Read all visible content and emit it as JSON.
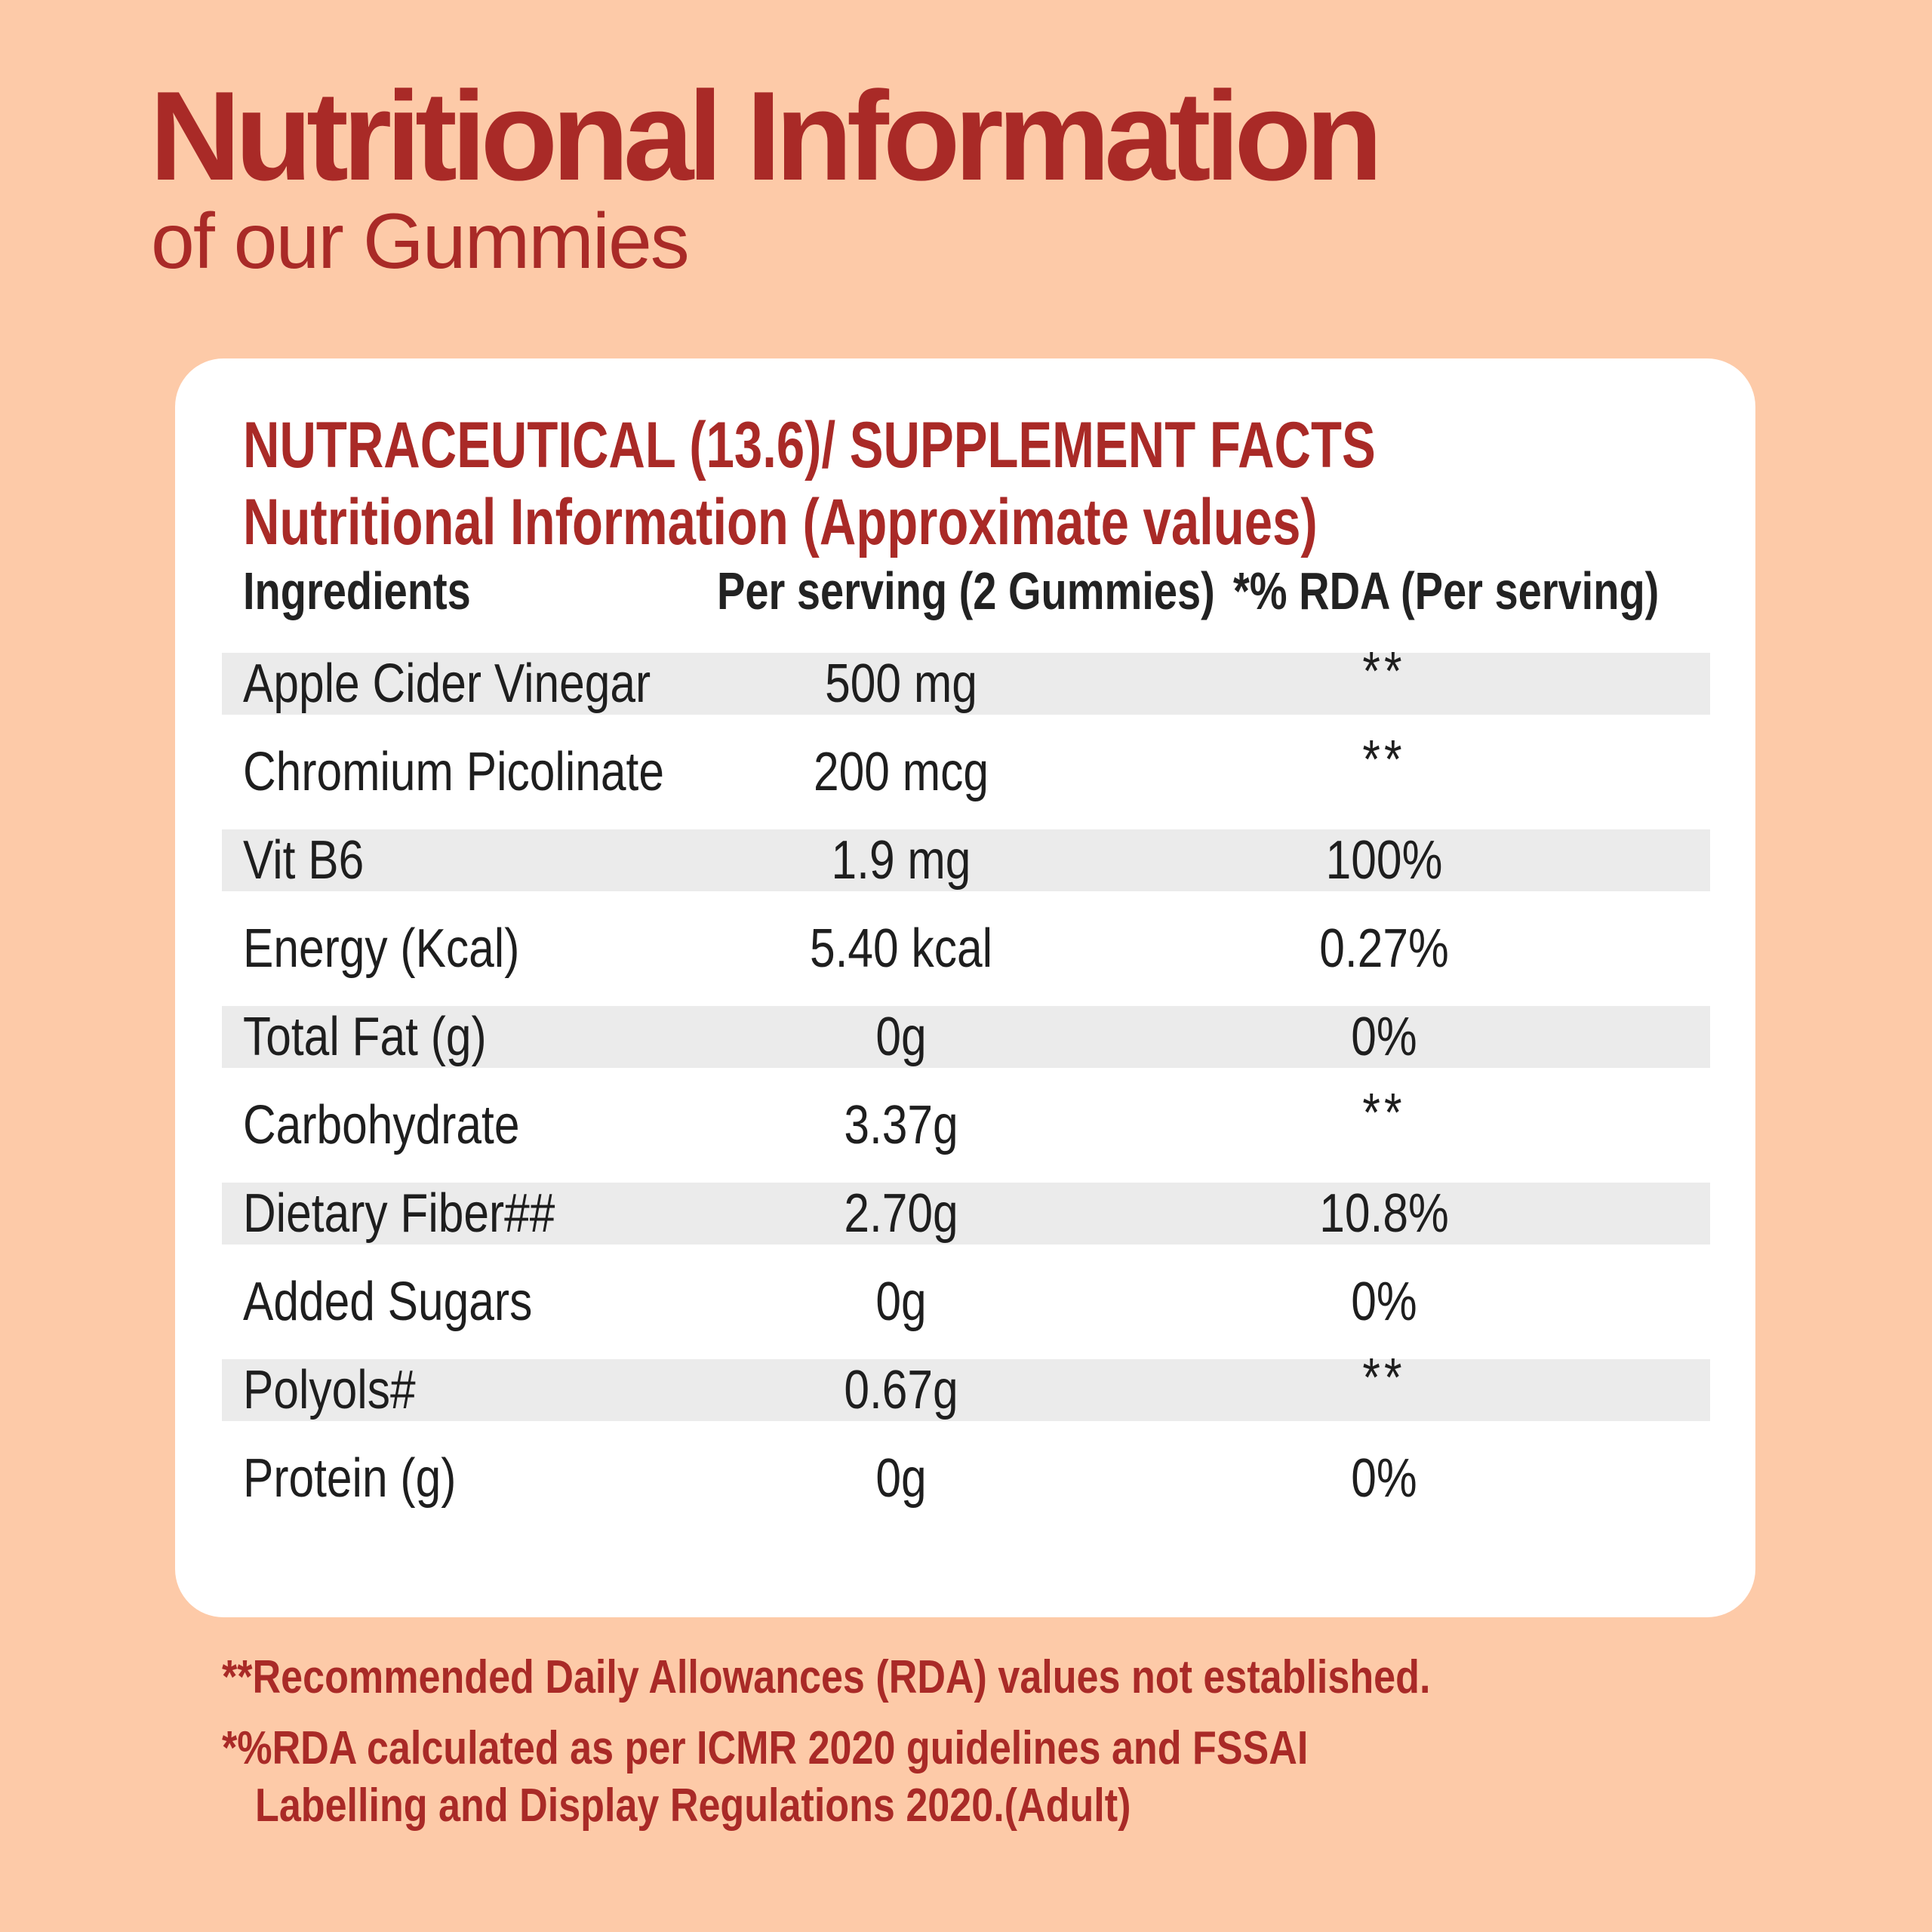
{
  "header": {
    "title": "Nutritional Information",
    "subtitle": "of our Gummies"
  },
  "facts": {
    "heading": "NUTRACEUTICAL (13.6)/ SUPPLEMENT FACTS",
    "subheading": "Nutritional Information (Approximate values)",
    "columns": {
      "ingredient": "Ingredients",
      "serving": "Per serving (2 Gummies)",
      "rda": "*% RDA (Per serving)"
    },
    "rows": [
      {
        "ingredient": "Apple Cider Vinegar",
        "serving": "500 mg",
        "rda": "**"
      },
      {
        "ingredient": "Chromium Picolinate",
        "serving": "200 mcg",
        "rda": "**"
      },
      {
        "ingredient": "Vit B6",
        "serving": "1.9 mg",
        "rda": "100%"
      },
      {
        "ingredient": "Energy (Kcal)",
        "serving": "5.40 kcal",
        "rda": "0.27%"
      },
      {
        "ingredient": "Total Fat (g)",
        "serving": "0g",
        "rda": "0%"
      },
      {
        "ingredient": "Carbohydrate",
        "serving": "3.37g",
        "rda": "**"
      },
      {
        "ingredient": "Dietary Fiber##",
        "serving": "2.70g",
        "rda": "10.8%"
      },
      {
        "ingredient": "Added Sugars",
        "serving": "0g",
        "rda": "0%"
      },
      {
        "ingredient": "Polyols#",
        "serving": "0.67g",
        "rda": "**"
      },
      {
        "ingredient": "Protein (g)",
        "serving": "0g",
        "rda": "0%"
      }
    ]
  },
  "footnotes": {
    "rda_not_established": "**Recommended Daily Allowances (RDA) values not established.",
    "rda_calc_line1": "*%RDA calculated as per ICMR 2020 guidelines and FSSAI",
    "rda_calc_line2": "Labelling and Display Regulations 2020.(Adult)"
  },
  "colors": {
    "background": "#FDCAA8",
    "accent": "#A92A27",
    "card": "#FFFFFF",
    "row_shade": "#EBEBEB"
  }
}
